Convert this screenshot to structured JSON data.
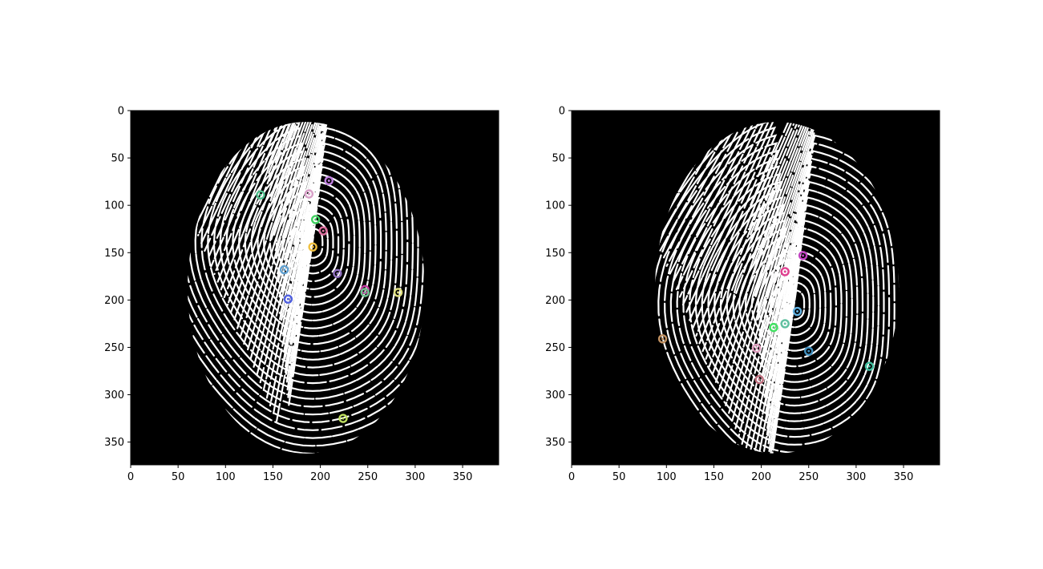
{
  "figure": {
    "panels": [
      {
        "name": "left-fingerprint",
        "xlim": [
          0,
          388
        ],
        "ylim": [
          0,
          374
        ],
        "x_ticks": [
          0,
          50,
          100,
          150,
          200,
          250,
          300,
          350
        ],
        "y_ticks": [
          0,
          50,
          100,
          150,
          200,
          250,
          300,
          350
        ],
        "core": [
          192,
          140
        ],
        "extent": {
          "left": 60,
          "right": 310,
          "top": 12,
          "bottom": 362
        },
        "keypoints": [
          {
            "x": 137,
            "y": 89,
            "color": "#4fc08d"
          },
          {
            "x": 188,
            "y": 88,
            "color": "#d8a0c8"
          },
          {
            "x": 209,
            "y": 74,
            "color": "#c080e0"
          },
          {
            "x": 195,
            "y": 115,
            "color": "#40d060"
          },
          {
            "x": 203,
            "y": 127,
            "color": "#e070a0"
          },
          {
            "x": 192,
            "y": 144,
            "color": "#f0c040"
          },
          {
            "x": 162,
            "y": 168,
            "color": "#60a0d0"
          },
          {
            "x": 218,
            "y": 172,
            "color": "#9070c0"
          },
          {
            "x": 247,
            "y": 189,
            "color": "#c040a0"
          },
          {
            "x": 247,
            "y": 192,
            "color": "#70c090"
          },
          {
            "x": 282,
            "y": 192,
            "color": "#e0e080"
          },
          {
            "x": 166,
            "y": 199,
            "color": "#5060e0"
          },
          {
            "x": 224,
            "y": 325,
            "color": "#c0e060"
          }
        ]
      },
      {
        "name": "right-fingerprint",
        "xlim": [
          0,
          388
        ],
        "ylim": [
          0,
          374
        ],
        "x_ticks": [
          0,
          50,
          100,
          150,
          200,
          250,
          300,
          350
        ],
        "y_ticks": [
          0,
          50,
          100,
          150,
          200,
          250,
          300,
          350
        ],
        "core": [
          235,
          205
        ],
        "extent": {
          "left": 88,
          "right": 345,
          "top": 12,
          "bottom": 362
        },
        "keypoints": [
          {
            "x": 244,
            "y": 153,
            "color": "#c040c0"
          },
          {
            "x": 225,
            "y": 170,
            "color": "#e04090"
          },
          {
            "x": 238,
            "y": 212,
            "color": "#60b0e0"
          },
          {
            "x": 213,
            "y": 229,
            "color": "#40e060"
          },
          {
            "x": 225,
            "y": 225,
            "color": "#60c0a0"
          },
          {
            "x": 96,
            "y": 241,
            "color": "#c09060"
          },
          {
            "x": 195,
            "y": 251,
            "color": "#e0a0c0"
          },
          {
            "x": 250,
            "y": 254,
            "color": "#4090c0"
          },
          {
            "x": 314,
            "y": 270,
            "color": "#40c0a0"
          },
          {
            "x": 198,
            "y": 284,
            "color": "#c07080"
          }
        ]
      }
    ]
  }
}
